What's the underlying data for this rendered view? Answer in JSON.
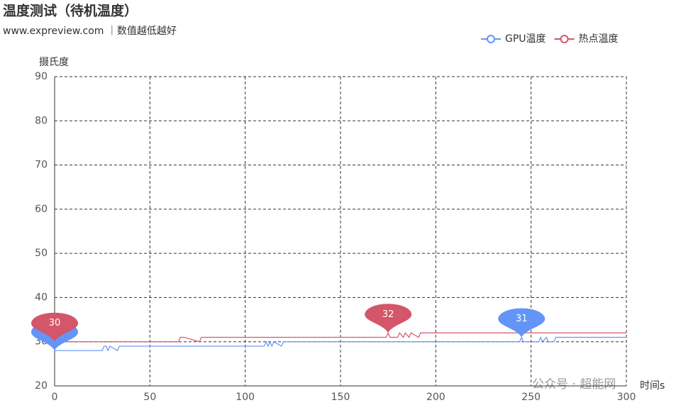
{
  "chart_data": {
    "type": "line",
    "title": "温度测试（待机温度）",
    "subtitle": "www.expreview.com ｜数值越低越好",
    "y_label": "摄氏度",
    "x_label": "时间s",
    "watermark": "公众号 · 超能网",
    "x": [
      0,
      25,
      26,
      27,
      28,
      29,
      33,
      34,
      65,
      66,
      67,
      68,
      76,
      77,
      110,
      111,
      112,
      113,
      114,
      115,
      119,
      120,
      174,
      175,
      176,
      180,
      181,
      183,
      184,
      186,
      187,
      191,
      192,
      193,
      244,
      245,
      246,
      254,
      255,
      256,
      258,
      259,
      262,
      263,
      300
    ],
    "series": [
      {
        "name": "GPU温度",
        "color": "#6395f9",
        "values": [
          28,
          28,
          29,
          29,
          28,
          29,
          28,
          29,
          29,
          29,
          29,
          29,
          29,
          29,
          29,
          30,
          29,
          30,
          29,
          30,
          29,
          30,
          30,
          30,
          30,
          30,
          30,
          30,
          30,
          30,
          30,
          30,
          30,
          30,
          30,
          31,
          30,
          30,
          31,
          30,
          31,
          30,
          30,
          31,
          31
        ],
        "markers": [
          {
            "x": 0,
            "value": 28
          },
          {
            "x": 245,
            "value": 31
          }
        ]
      },
      {
        "name": "热点温度",
        "color": "#d4566b",
        "values": [
          30,
          30,
          30,
          30,
          30,
          30,
          30,
          30,
          30,
          31,
          31,
          31,
          30,
          31,
          31,
          31,
          31,
          31,
          31,
          31,
          31,
          31,
          31,
          32,
          31,
          31,
          32,
          31,
          32,
          31,
          32,
          31,
          32,
          32,
          32,
          32,
          32,
          32,
          32,
          32,
          32,
          32,
          32,
          32,
          32
        ],
        "markers": [
          {
            "x": 0,
            "value": 30
          },
          {
            "x": 175,
            "value": 32
          }
        ]
      }
    ],
    "xlim": [
      0,
      300
    ],
    "xticks": [
      0,
      50,
      100,
      150,
      200,
      250,
      300
    ],
    "ylim": [
      20,
      90
    ],
    "yticks": [
      20,
      30,
      40,
      50,
      60,
      70,
      80,
      90
    ],
    "grid": true
  }
}
